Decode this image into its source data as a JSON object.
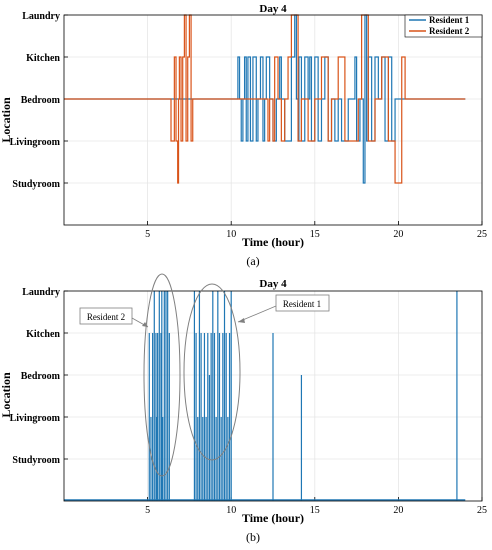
{
  "panel_labels": [
    "(a)",
    "(b)"
  ],
  "colors": {
    "resident1": "#1f77b4",
    "resident2": "#d95319",
    "grid": "#e6e6e6",
    "axis": "#000000",
    "annotation": "#808080"
  },
  "chart_data": [
    {
      "type": "line",
      "subtype": "step",
      "title": "Day 4",
      "xlabel": "Time (hour)",
      "ylabel": "Location",
      "xlim": [
        0,
        25
      ],
      "xticks": [
        5,
        10,
        15,
        20,
        25
      ],
      "yticks": [
        "Studyroom",
        "Livingroom",
        "Bedroom",
        "Kitchen",
        "Laundry"
      ],
      "grid": true,
      "legend": "top-right",
      "series": [
        {
          "name": "Resident 1",
          "x": [
            0.0,
            10.4,
            10.5,
            10.6,
            10.7,
            10.8,
            10.9,
            11.0,
            11.15,
            11.3,
            11.5,
            11.6,
            11.75,
            11.9,
            12.0,
            12.1,
            12.3,
            12.5,
            12.7,
            12.9,
            13.0,
            13.2,
            13.6,
            13.8,
            13.9,
            14.0,
            14.05,
            14.2,
            14.4,
            14.6,
            14.7,
            14.8,
            15.0,
            15.2,
            15.4,
            15.6,
            15.8,
            16.0,
            16.2,
            16.4,
            16.6,
            17.0,
            17.4,
            17.5,
            17.7,
            17.9,
            18.0,
            18.1,
            18.2,
            18.4,
            18.6,
            18.8,
            19.0,
            19.2,
            19.4,
            19.6,
            19.8,
            20.0,
            24.0
          ],
          "y": [
            "Bedroom",
            "Kitchen",
            "Bedroom",
            "Livingroom",
            "Bedroom",
            "Kitchen",
            "Livingroom",
            "Kitchen",
            "Livingroom",
            "Kitchen",
            "Livingroom",
            "Bedroom",
            "Kitchen",
            "Livingroom",
            "Bedroom",
            "Kitchen",
            "Bedroom",
            "Livingroom",
            "Bedroom",
            "Kitchen",
            "Bedroom",
            "Livingroom",
            "Kitchen",
            "Laundry",
            "Bedroom",
            "Livingroom",
            "Kitchen",
            "Livingroom",
            "Kitchen",
            "Bedroom",
            "Kitchen",
            "Livingroom",
            "Kitchen",
            "Livingroom",
            "Bedroom",
            "Kitchen",
            "Livingroom",
            "Bedroom",
            "Livingroom",
            "Bedroom",
            "Livingroom",
            "Bedroom",
            "Kitchen",
            "Livingroom",
            "Bedroom",
            "Studyroom",
            "Laundry",
            "Livingroom",
            "Kitchen",
            "Livingroom",
            "Kitchen",
            "Bedroom",
            "Kitchen",
            "Livingroom",
            "Kitchen",
            "Livingroom",
            "Bedroom",
            "Bedroom",
            "Bedroom"
          ]
        },
        {
          "name": "Resident 2",
          "x": [
            0.0,
            6.4,
            6.6,
            6.7,
            6.8,
            6.85,
            6.9,
            7.0,
            7.1,
            7.2,
            7.3,
            7.4,
            7.5,
            7.6,
            7.7,
            12.2,
            12.3,
            12.5,
            12.6,
            12.8,
            13.0,
            13.2,
            13.4,
            13.6,
            14.0,
            14.2,
            14.6,
            15.0,
            15.4,
            15.8,
            16.0,
            16.4,
            16.8,
            17.6,
            17.8,
            18.2,
            18.6,
            19.0,
            19.4,
            19.8,
            20.2,
            20.4,
            24.0
          ],
          "y": [
            "Bedroom",
            "Livingroom",
            "Kitchen",
            "Livingroom",
            "Studyroom",
            "Bedroom",
            "Kitchen",
            "Livingroom",
            "Kitchen",
            "Laundry",
            "Livingroom",
            "Kitchen",
            "Laundry",
            "Livingroom",
            "Bedroom",
            "Livingroom",
            "Bedroom",
            "Livingroom",
            "Kitchen",
            "Bedroom",
            "Livingroom",
            "Bedroom",
            "Kitchen",
            "Laundry",
            "Livingroom",
            "Bedroom",
            "Livingroom",
            "Bedroom",
            "Kitchen",
            "Livingroom",
            "Bedroom",
            "Kitchen",
            "Livingroom",
            "Bedroom",
            "Laundry",
            "Livingroom",
            "Bedroom",
            "Kitchen",
            "Livingroom",
            "Studyroom",
            "Kitchen",
            "Bedroom",
            "Bedroom"
          ]
        }
      ]
    },
    {
      "type": "bar",
      "subtype": "spikes",
      "title": "Day 4",
      "xlabel": "Time (hour)",
      "ylabel": "Location",
      "xlim": [
        0,
        25
      ],
      "xticks": [
        5,
        10,
        15,
        20,
        25
      ],
      "yticks": [
        "Studyroom",
        "Livingroom",
        "Bedroom",
        "Kitchen",
        "Laundry"
      ],
      "grid": true,
      "annotations": [
        "Resident 2",
        "Resident 1"
      ],
      "x": [
        5.1,
        5.2,
        5.3,
        5.4,
        5.5,
        5.55,
        5.6,
        5.7,
        5.8,
        5.85,
        5.9,
        6.0,
        6.1,
        6.2,
        6.3,
        7.8,
        7.9,
        8.0,
        8.1,
        8.2,
        8.3,
        8.4,
        8.5,
        8.6,
        8.7,
        8.8,
        8.9,
        9.0,
        9.1,
        9.2,
        9.3,
        9.4,
        9.5,
        9.6,
        9.7,
        9.8,
        9.9,
        10.0,
        12.5,
        14.2,
        23.5
      ],
      "y": [
        "Kitchen",
        "Livingroom",
        "Kitchen",
        "Laundry",
        "Kitchen",
        "Livingroom",
        "Kitchen",
        "Laundry",
        "Kitchen",
        "Laundry",
        "Livingroom",
        "Laundry",
        "Laundry",
        "Laundry",
        "Kitchen",
        "Laundry",
        "Kitchen",
        "Livingroom",
        "Laundry",
        "Kitchen",
        "Livingroom",
        "Kitchen",
        "Livingroom",
        "Kitchen",
        "Bedroom",
        "Kitchen",
        "Laundry",
        "Kitchen",
        "Livingroom",
        "Laundry",
        "Kitchen",
        "Livingroom",
        "Kitchen",
        "Laundry",
        "Kitchen",
        "Livingroom",
        "Kitchen",
        "Laundry",
        "Kitchen",
        "Bedroom",
        "Laundry"
      ]
    }
  ]
}
